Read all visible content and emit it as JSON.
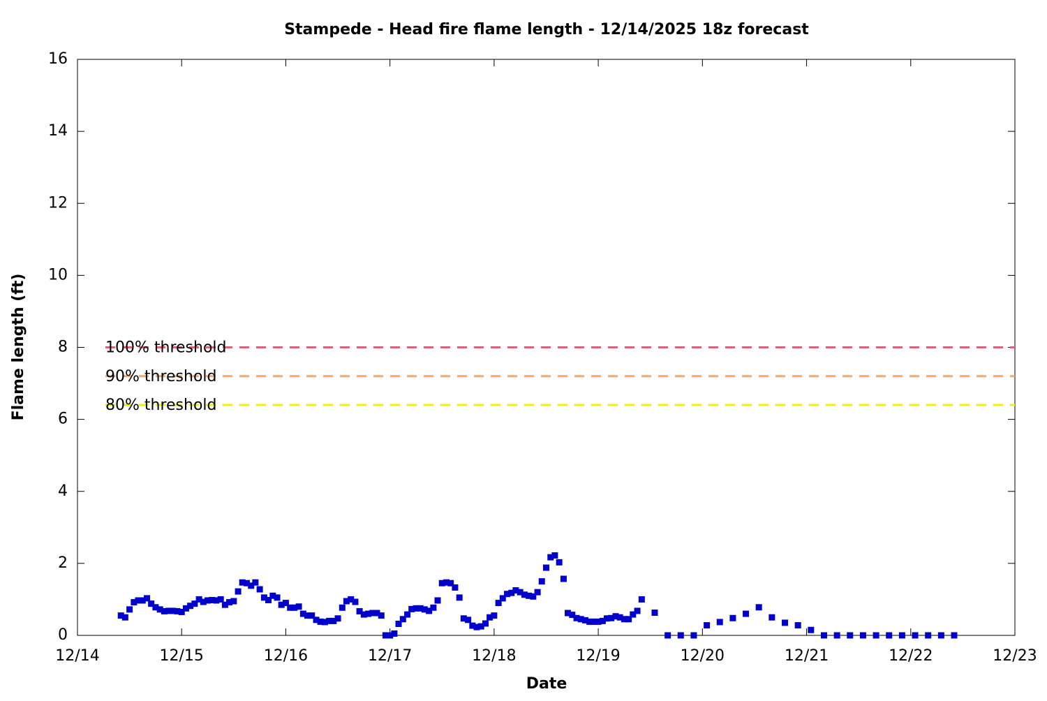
{
  "chart_data": {
    "type": "scatter",
    "title": "Stampede - Head fire flame length - 12/14/2025 18z forecast",
    "x_label": "Date",
    "y_label": "Flame length (ft)",
    "xlim": [
      0,
      9
    ],
    "xticks": [
      {
        "value": 0,
        "label": "12/14"
      },
      {
        "value": 1,
        "label": "12/15"
      },
      {
        "value": 2,
        "label": "12/16"
      },
      {
        "value": 3,
        "label": "12/17"
      },
      {
        "value": 4,
        "label": "12/18"
      },
      {
        "value": 5,
        "label": "12/19"
      },
      {
        "value": 6,
        "label": "12/20"
      },
      {
        "value": 7,
        "label": "12/21"
      },
      {
        "value": 8,
        "label": "12/22"
      },
      {
        "value": 9,
        "label": "12/23"
      }
    ],
    "ylim": [
      0,
      16
    ],
    "yticks": [
      0,
      2,
      4,
      6,
      8,
      10,
      12,
      14,
      16
    ],
    "thresholds": [
      {
        "label": "100% threshold",
        "value": 8,
        "color": "#e0607a"
      },
      {
        "label": "90% threshold",
        "value": 7.2,
        "color": "#f4a870"
      },
      {
        "label": "80% threshold",
        "value": 6.4,
        "color": "#f0f000"
      }
    ],
    "series": [
      {
        "color": "#0000cc",
        "x": [
          0.417,
          0.458,
          0.5,
          0.542,
          0.583,
          0.625,
          0.667,
          0.708,
          0.75,
          0.792,
          0.833,
          0.875,
          0.917,
          0.958,
          1,
          1.042,
          1.083,
          1.125,
          1.167,
          1.208,
          1.25,
          1.292,
          1.333,
          1.375,
          1.417,
          1.458,
          1.5,
          1.542,
          1.583,
          1.625,
          1.667,
          1.708,
          1.75,
          1.792,
          1.833,
          1.875,
          1.917,
          1.958,
          2,
          2.042,
          2.083,
          2.125,
          2.167,
          2.208,
          2.25,
          2.292,
          2.333,
          2.375,
          2.417,
          2.458,
          2.5,
          2.542,
          2.583,
          2.625,
          2.667,
          2.708,
          2.75,
          2.792,
          2.833,
          2.875,
          2.917,
          2.958,
          3,
          3.042,
          3.083,
          3.125,
          3.167,
          3.208,
          3.25,
          3.292,
          3.333,
          3.375,
          3.417,
          3.458,
          3.5,
          3.542,
          3.583,
          3.625,
          3.667,
          3.708,
          3.75,
          3.792,
          3.833,
          3.875,
          3.917,
          3.958,
          4,
          4.042,
          4.083,
          4.125,
          4.167,
          4.208,
          4.25,
          4.292,
          4.333,
          4.375,
          4.417,
          4.458,
          4.5,
          4.542,
          4.583,
          4.625,
          4.667,
          4.708,
          4.75,
          4.792,
          4.833,
          4.875,
          4.917,
          4.958,
          5,
          5.042,
          5.083,
          5.125,
          5.167,
          5.208,
          5.25,
          5.292,
          5.333,
          5.375,
          5.417,
          5.542,
          5.667,
          5.792,
          5.917,
          6.042,
          6.167,
          6.292,
          6.417,
          6.542,
          6.667,
          6.792,
          6.917,
          7.042,
          7.167,
          7.292,
          7.417,
          7.542,
          7.667,
          7.792,
          7.917,
          8.042,
          8.167,
          8.292,
          8.417
        ],
        "values": [
          0.55,
          0.5,
          0.72,
          0.92,
          0.97,
          0.97,
          1.03,
          0.88,
          0.78,
          0.72,
          0.67,
          0.68,
          0.68,
          0.67,
          0.65,
          0.75,
          0.82,
          0.88,
          1.0,
          0.93,
          0.97,
          0.98,
          0.97,
          1.0,
          0.85,
          0.92,
          0.95,
          1.22,
          1.47,
          1.45,
          1.38,
          1.47,
          1.28,
          1.05,
          0.98,
          1.1,
          1.05,
          0.85,
          0.9,
          0.77,
          0.77,
          0.8,
          0.6,
          0.55,
          0.55,
          0.43,
          0.38,
          0.37,
          0.4,
          0.4,
          0.47,
          0.77,
          0.95,
          1.0,
          0.93,
          0.67,
          0.58,
          0.6,
          0.62,
          0.62,
          0.55,
          0.0,
          0.0,
          0.05,
          0.32,
          0.45,
          0.58,
          0.73,
          0.75,
          0.75,
          0.72,
          0.68,
          0.77,
          0.97,
          1.45,
          1.47,
          1.45,
          1.33,
          1.05,
          0.47,
          0.43,
          0.27,
          0.23,
          0.25,
          0.33,
          0.5,
          0.55,
          0.9,
          1.03,
          1.15,
          1.18,
          1.25,
          1.2,
          1.13,
          1.1,
          1.08,
          1.2,
          1.5,
          1.88,
          2.17,
          2.22,
          2.03,
          1.57,
          0.62,
          0.57,
          0.48,
          0.45,
          0.42,
          0.38,
          0.38,
          0.38,
          0.4,
          0.47,
          0.48,
          0.53,
          0.5,
          0.45,
          0.45,
          0.58,
          0.68,
          1.0,
          0.63,
          0.0,
          0.0,
          0.0,
          0.28,
          0.37,
          0.48,
          0.6,
          0.78,
          0.5,
          0.35,
          0.28,
          0.15,
          0,
          0,
          0,
          0,
          0,
          0,
          0,
          0,
          0,
          0,
          0
        ]
      }
    ]
  }
}
